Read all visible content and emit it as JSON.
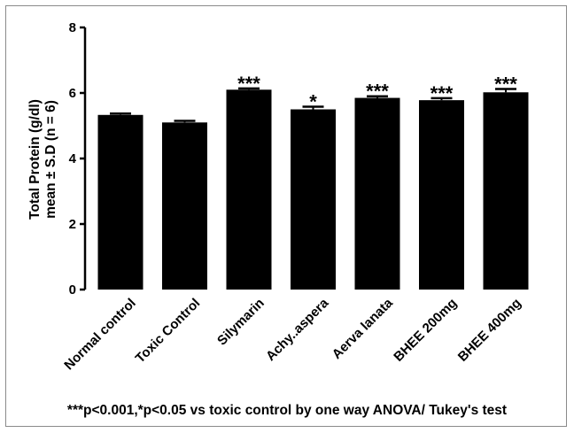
{
  "chart_data": {
    "type": "bar",
    "ylabel_line1": "Total Protein (g/dl)",
    "ylabel_line2": "mean ± S.D (n = 6)",
    "ylim": [
      0,
      8
    ],
    "yticks": [
      "0",
      "2",
      "4",
      "6",
      "8"
    ],
    "grid": false,
    "categories": [
      "Normal control",
      "Toxic Control",
      "Silymarin",
      "Achy..aspera",
      "Aerva lanata",
      "BHEE 200mg",
      "BHEE 400mg"
    ],
    "values": [
      5.33,
      5.1,
      6.1,
      5.5,
      5.85,
      5.78,
      6.02
    ],
    "errors": [
      0.04,
      0.05,
      0.04,
      0.08,
      0.05,
      0.06,
      0.1
    ],
    "significance": [
      "",
      "",
      "***",
      "*",
      "***",
      "***",
      "***"
    ],
    "bar_color": "#000000"
  },
  "footnote": "***p<0.001,*p<0.05 vs toxic control by one way ANOVA/ Tukey's test"
}
